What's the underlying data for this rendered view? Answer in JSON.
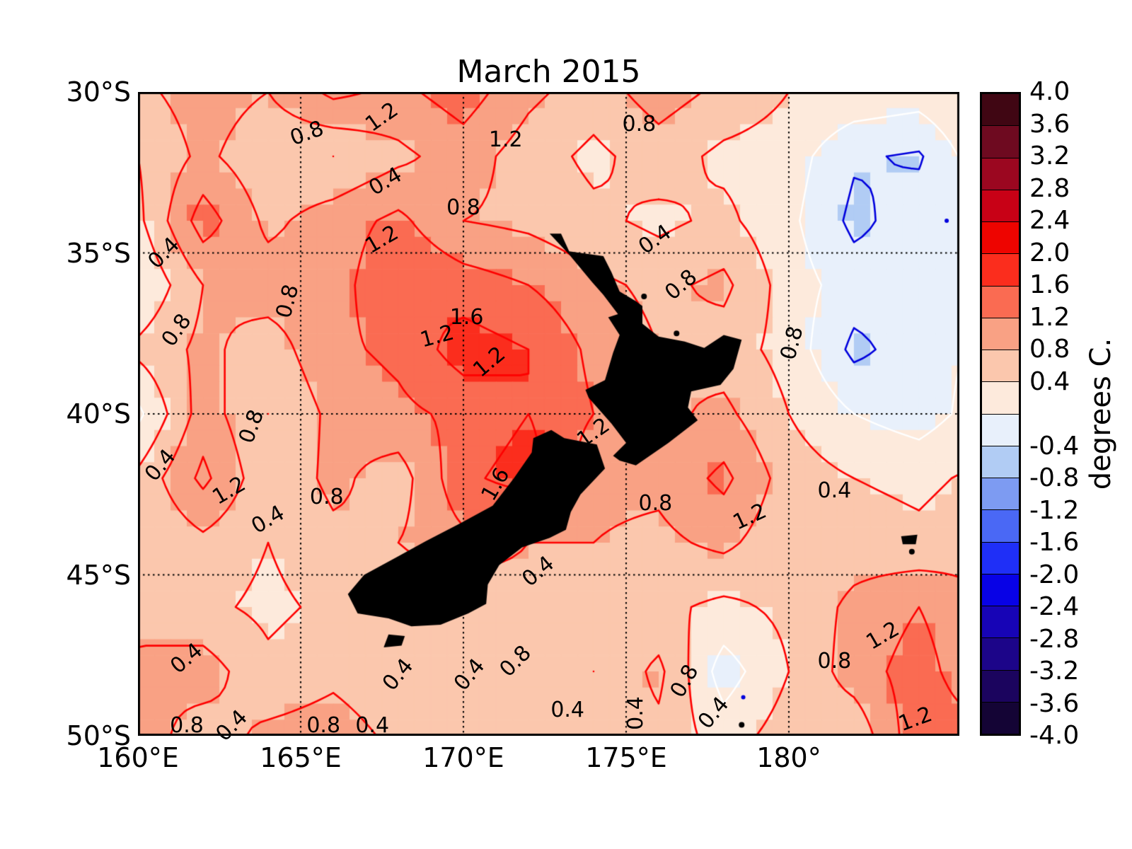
{
  "chart_data": {
    "type": "heatmap",
    "title": "March 2015",
    "colorbar_label": "degrees C.",
    "x_ticks": [
      {
        "label": "160°E",
        "lon": 160
      },
      {
        "label": "165°E",
        "lon": 165
      },
      {
        "label": "170°E",
        "lon": 170
      },
      {
        "label": "175°E",
        "lon": 175
      },
      {
        "label": "180°",
        "lon": 180
      }
    ],
    "y_ticks": [
      {
        "label": "30°S",
        "lat": 30
      },
      {
        "label": "35°S",
        "lat": 35
      },
      {
        "label": "40°S",
        "lat": 40
      },
      {
        "label": "45°S",
        "lat": 45
      },
      {
        "label": "50°S",
        "lat": 50
      }
    ],
    "lon_range": [
      160,
      185.24
    ],
    "lat_range": [
      30,
      50
    ],
    "grid_lons": [
      165,
      170,
      175,
      180
    ],
    "grid_lats": [
      35,
      40,
      45
    ],
    "colormap": {
      "vmin": -4.0,
      "vmax": 4.0,
      "step": 0.4,
      "colors_top_to_bottom": [
        "#400613",
        "#6e0a20",
        "#9b0720",
        "#c80116",
        "#ee0400",
        "#fb2d1d",
        "#fa6b52",
        "#f9a184",
        "#fbc7ad",
        "#fdeadc",
        "#e8f0fb",
        "#b1ccf4",
        "#7d9bf2",
        "#4a68f5",
        "#1f2ff7",
        "#0802e6",
        "#1704b6",
        "#1c0589",
        "#1b045e",
        "#140435"
      ],
      "tick_labels": [
        "4.0",
        "3.6",
        "3.2",
        "2.8",
        "2.4",
        "2.0",
        "1.6",
        "1.2",
        "0.8",
        "0.4",
        "-0.4",
        "-0.8",
        "-1.2",
        "-1.6",
        "-2.0",
        "-2.4",
        "-2.8",
        "-3.2",
        "-3.6",
        "-4.0"
      ]
    },
    "grid": {
      "lon_start": 160,
      "lon_step": 2,
      "lat_start": 30,
      "lat_step": 2,
      "values_by_lat_row": [
        [
          0.7,
          1.0,
          0.8,
          1.3,
          1.1,
          1.4,
          0.9,
          0.6,
          1.0,
          0.7,
          0.4,
          0.3,
          0.2,
          0.5
        ],
        [
          0.4,
          0.9,
          0.5,
          0.4,
          0.7,
          1.0,
          0.6,
          0.3,
          0.6,
          0.3,
          0.2,
          -0.35,
          -0.45,
          0.3
        ],
        [
          0.3,
          1.4,
          0.7,
          1.0,
          1.3,
          0.8,
          0.7,
          0.5,
          0.3,
          0.5,
          0.1,
          -0.5,
          -0.2,
          -0.1
        ],
        [
          0.0,
          0.8,
          1.0,
          1.0,
          1.6,
          1.4,
          1.2,
          0.9,
          0.7,
          0.9,
          0.2,
          -0.2,
          -0.3,
          0.0
        ],
        [
          0.5,
          0.9,
          0.6,
          1.1,
          1.3,
          1.8,
          1.6,
          1.1,
          0.8,
          0.6,
          0.25,
          -0.5,
          -0.2,
          0.1
        ],
        [
          -0.1,
          1.0,
          0.4,
          0.9,
          1.1,
          1.3,
          1.6,
          1.2,
          0.7,
          0.9,
          0.4,
          0.0,
          -0.2,
          0.2
        ],
        [
          0.5,
          1.3,
          0.5,
          0.9,
          0.6,
          1.5,
          1.8,
          0.9,
          0.9,
          1.3,
          0.6,
          0.4,
          0.3,
          0.5
        ],
        [
          0.4,
          0.7,
          0.4,
          0.7,
          0.8,
          1.1,
          0.8,
          0.8,
          0.7,
          0.9,
          0.5,
          0.6,
          0.5,
          0.7
        ],
        [
          0.8,
          0.5,
          0.3,
          0.5,
          0.5,
          0.4,
          0.6,
          0.6,
          0.5,
          0.3,
          0.5,
          0.9,
          1.2,
          0.8
        ],
        [
          0.8,
          1.0,
          0.5,
          0.7,
          0.5,
          0.6,
          0.6,
          0.4,
          0.9,
          -0.2,
          0.4,
          1.0,
          1.4,
          0.8
        ],
        [
          1.0,
          0.6,
          0.9,
          1.0,
          0.7,
          0.8,
          0.4,
          0.6,
          0.7,
          0.2,
          0.6,
          0.5,
          1.5,
          1.3
        ]
      ]
    },
    "contours": {
      "red_levels": [
        0.4,
        0.8,
        1.2,
        1.6
      ],
      "blue_levels": [
        -0.4
      ],
      "white_levels": [
        0.0
      ],
      "red_color": "#fe0000",
      "blue_color": "#0000dd",
      "white_color": "#ffffff"
    },
    "contour_labels": [
      {
        "text": "1.2",
        "lon": 167.5,
        "lat": 30.8,
        "rot": -35
      },
      {
        "text": "0.8",
        "lon": 165.2,
        "lat": 31.3,
        "rot": -20
      },
      {
        "text": "1.2",
        "lon": 171.3,
        "lat": 31.5,
        "rot": 0
      },
      {
        "text": "0.8",
        "lon": 175.4,
        "lat": 31.0,
        "rot": 0
      },
      {
        "text": "0.4",
        "lon": 167.6,
        "lat": 32.8,
        "rot": -30
      },
      {
        "text": "0.8",
        "lon": 170.0,
        "lat": 33.6,
        "rot": 0
      },
      {
        "text": "1.2",
        "lon": 167.5,
        "lat": 34.6,
        "rot": -30
      },
      {
        "text": "0.4",
        "lon": 160.8,
        "lat": 35.0,
        "rot": -45
      },
      {
        "text": "0.4",
        "lon": 175.9,
        "lat": 34.6,
        "rot": -35
      },
      {
        "text": "0.8",
        "lon": 176.7,
        "lat": 36.0,
        "rot": -40
      },
      {
        "text": "0.8",
        "lon": 161.2,
        "lat": 37.4,
        "rot": -55
      },
      {
        "text": "0.8",
        "lon": 164.6,
        "lat": 36.5,
        "rot": -75
      },
      {
        "text": "1.6",
        "lon": 170.1,
        "lat": 37.0,
        "rot": 0
      },
      {
        "text": "1.2",
        "lon": 169.2,
        "lat": 37.6,
        "rot": -15
      },
      {
        "text": "1.2",
        "lon": 170.8,
        "lat": 38.4,
        "rot": -40
      },
      {
        "text": "0.8",
        "lon": 180.1,
        "lat": 37.8,
        "rot": -75
      },
      {
        "text": "0.8",
        "lon": 163.5,
        "lat": 40.4,
        "rot": -70
      },
      {
        "text": "0.4",
        "lon": 160.7,
        "lat": 41.6,
        "rot": -50
      },
      {
        "text": "1.2",
        "lon": 162.8,
        "lat": 42.4,
        "rot": -30
      },
      {
        "text": "0.4",
        "lon": 164.0,
        "lat": 43.3,
        "rot": -30
      },
      {
        "text": "0.8",
        "lon": 165.8,
        "lat": 42.6,
        "rot": 0
      },
      {
        "text": "1.6",
        "lon": 171.0,
        "lat": 42.2,
        "rot": -60
      },
      {
        "text": "1.2",
        "lon": 174.0,
        "lat": 40.6,
        "rot": -35
      },
      {
        "text": "0.8",
        "lon": 175.9,
        "lat": 42.8,
        "rot": 0
      },
      {
        "text": "1.2",
        "lon": 178.8,
        "lat": 43.2,
        "rot": -25
      },
      {
        "text": "0.4",
        "lon": 181.4,
        "lat": 42.4,
        "rot": 0
      },
      {
        "text": "0.4",
        "lon": 172.3,
        "lat": 44.9,
        "rot": -40
      },
      {
        "text": "0.4",
        "lon": 161.5,
        "lat": 47.6,
        "rot": -40
      },
      {
        "text": "0.8",
        "lon": 161.5,
        "lat": 49.7,
        "rot": 0
      },
      {
        "text": "0.4",
        "lon": 162.9,
        "lat": 49.7,
        "rot": -45
      },
      {
        "text": "0.8",
        "lon": 165.7,
        "lat": 49.7,
        "rot": 0
      },
      {
        "text": "0.4",
        "lon": 167.2,
        "lat": 49.7,
        "rot": 0
      },
      {
        "text": "0.4",
        "lon": 168.0,
        "lat": 48.1,
        "rot": -50
      },
      {
        "text": "0.4",
        "lon": 170.2,
        "lat": 48.1,
        "rot": -50
      },
      {
        "text": "0.8",
        "lon": 171.6,
        "lat": 47.7,
        "rot": -45
      },
      {
        "text": "0.4",
        "lon": 173.2,
        "lat": 49.2,
        "rot": 0
      },
      {
        "text": "0.4",
        "lon": 175.3,
        "lat": 49.3,
        "rot": -90
      },
      {
        "text": "0.8",
        "lon": 176.8,
        "lat": 48.3,
        "rot": -60
      },
      {
        "text": "0.4",
        "lon": 177.7,
        "lat": 49.3,
        "rot": -50
      },
      {
        "text": "0.8",
        "lon": 181.4,
        "lat": 47.7,
        "rot": 0
      },
      {
        "text": "1.2",
        "lon": 182.9,
        "lat": 46.9,
        "rot": -30
      },
      {
        "text": "1.2",
        "lon": 183.9,
        "lat": 49.5,
        "rot": -20
      }
    ],
    "land": {
      "color": "#000000",
      "polygons": {
        "north_island": [
          [
            172.65,
            34.4
          ],
          [
            173.0,
            34.4
          ],
          [
            173.25,
            34.95
          ],
          [
            174.3,
            35.1
          ],
          [
            174.55,
            35.6
          ],
          [
            174.8,
            36.2
          ],
          [
            175.3,
            36.5
          ],
          [
            175.5,
            36.65
          ],
          [
            175.5,
            37.2
          ],
          [
            176.0,
            37.6
          ],
          [
            176.8,
            37.75
          ],
          [
            177.4,
            37.95
          ],
          [
            178.0,
            37.55
          ],
          [
            178.55,
            37.7
          ],
          [
            178.3,
            38.6
          ],
          [
            177.9,
            39.1
          ],
          [
            177.0,
            39.3
          ],
          [
            176.9,
            39.8
          ],
          [
            177.2,
            40.2
          ],
          [
            176.3,
            40.9
          ],
          [
            175.3,
            41.6
          ],
          [
            174.8,
            41.45
          ],
          [
            174.6,
            41.3
          ],
          [
            175.0,
            40.9
          ],
          [
            174.55,
            40.3
          ],
          [
            173.85,
            39.5
          ],
          [
            173.75,
            39.25
          ],
          [
            174.35,
            38.95
          ],
          [
            174.6,
            38.1
          ],
          [
            174.8,
            37.55
          ],
          [
            174.45,
            37.0
          ],
          [
            174.75,
            36.9
          ],
          [
            174.3,
            36.3
          ],
          [
            173.95,
            35.9
          ],
          [
            173.25,
            35.05
          ],
          [
            172.65,
            34.4
          ]
        ],
        "south_island": [
          [
            172.7,
            40.5
          ],
          [
            173.1,
            40.75
          ],
          [
            174.1,
            40.95
          ],
          [
            174.35,
            41.7
          ],
          [
            173.6,
            42.5
          ],
          [
            173.3,
            43.05
          ],
          [
            173.15,
            43.6
          ],
          [
            172.65,
            43.85
          ],
          [
            171.8,
            44.15
          ],
          [
            171.1,
            44.7
          ],
          [
            170.75,
            45.3
          ],
          [
            170.7,
            45.9
          ],
          [
            170.15,
            46.2
          ],
          [
            169.3,
            46.55
          ],
          [
            168.4,
            46.6
          ],
          [
            167.7,
            46.35
          ],
          [
            166.75,
            46.2
          ],
          [
            166.45,
            45.6
          ],
          [
            166.95,
            45.0
          ],
          [
            167.95,
            44.45
          ],
          [
            168.85,
            43.95
          ],
          [
            169.9,
            43.4
          ],
          [
            170.9,
            42.85
          ],
          [
            171.55,
            42.0
          ],
          [
            172.1,
            41.2
          ],
          [
            172.15,
            40.75
          ],
          [
            172.7,
            40.5
          ]
        ],
        "stewart_island": [
          [
            167.7,
            46.85
          ],
          [
            168.2,
            46.9
          ],
          [
            168.1,
            47.2
          ],
          [
            167.55,
            47.25
          ],
          [
            167.7,
            46.85
          ]
        ],
        "chatham_island": [
          [
            183.45,
            43.8
          ],
          [
            183.95,
            43.75
          ],
          [
            183.9,
            44.05
          ],
          [
            183.5,
            44.05
          ],
          [
            183.45,
            43.8
          ]
        ]
      },
      "island_dots": [
        [
          175.55,
          36.35
        ],
        [
          176.55,
          37.5
        ],
        [
          183.78,
          44.28
        ],
        [
          178.55,
          49.66
        ]
      ],
      "blue_specks": [
        [
          178.6,
          48.8
        ],
        [
          184.85,
          34.0
        ]
      ]
    }
  }
}
